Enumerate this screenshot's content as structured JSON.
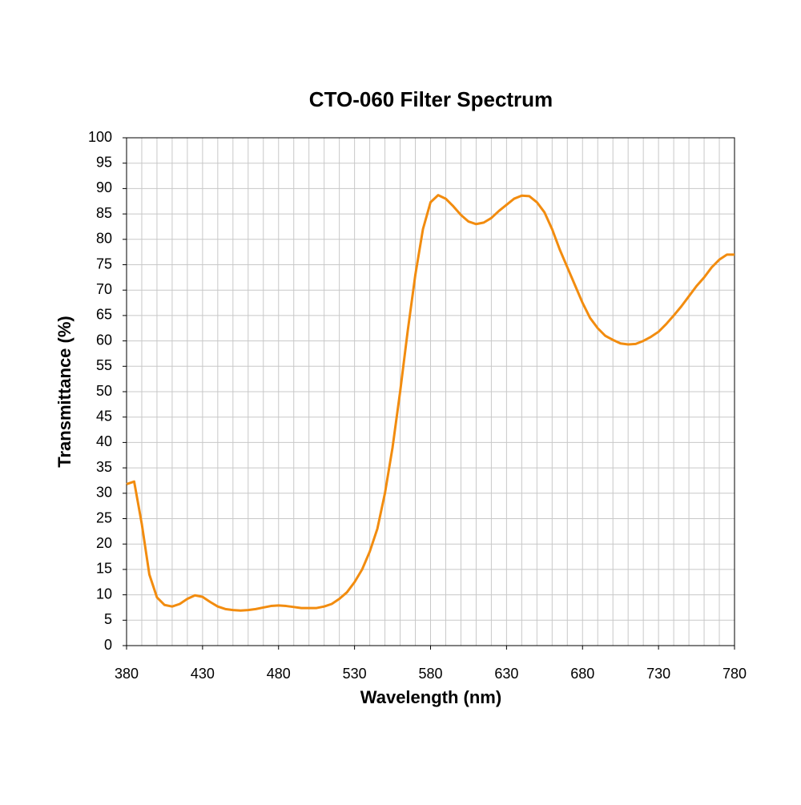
{
  "chart_data": {
    "type": "line",
    "title": "CTO-060 Filter Spectrum",
    "x_label": "Wavelength (nm)",
    "y_label": "Transmittance (%)",
    "x": [
      380,
      385,
      390,
      395,
      400,
      405,
      410,
      415,
      420,
      425,
      430,
      435,
      440,
      445,
      450,
      455,
      460,
      465,
      470,
      475,
      480,
      485,
      490,
      495,
      500,
      505,
      510,
      515,
      520,
      525,
      530,
      535,
      540,
      545,
      550,
      555,
      560,
      565,
      570,
      575,
      580,
      585,
      590,
      595,
      600,
      605,
      610,
      615,
      620,
      625,
      630,
      635,
      640,
      645,
      650,
      655,
      660,
      665,
      670,
      675,
      680,
      685,
      690,
      695,
      700,
      705,
      710,
      715,
      720,
      725,
      730,
      735,
      740,
      745,
      750,
      755,
      760,
      765,
      770,
      775,
      780
    ],
    "series": [
      {
        "name": "CTO-060",
        "color": "#f28c0f",
        "values": [
          31.8,
          32.3,
          24,
          14,
          9.5,
          8,
          7.7,
          8.2,
          9.2,
          9.9,
          9.6,
          8.6,
          7.7,
          7.2,
          7,
          6.9,
          7,
          7.2,
          7.5,
          7.8,
          7.9,
          7.8,
          7.6,
          7.4,
          7.4,
          7.4,
          7.7,
          8.2,
          9.2,
          10.5,
          12.5,
          15,
          18.5,
          23,
          30,
          39,
          50,
          62,
          73,
          82,
          87.3,
          88.7,
          88,
          86.5,
          84.8,
          83.5,
          83,
          83.3,
          84.2,
          85.6,
          86.8,
          88,
          88.6,
          88.5,
          87.3,
          85.3,
          82,
          78,
          74.5,
          71,
          67.5,
          64.5,
          62.5,
          61,
          60.2,
          59.5,
          59.3,
          59.4,
          60,
          60.8,
          61.8,
          63.3,
          65,
          66.8,
          68.8,
          70.8,
          72.5,
          74.5,
          76,
          77,
          77
        ]
      }
    ],
    "xlim": [
      380,
      780
    ],
    "xticks": [
      380,
      430,
      480,
      530,
      580,
      630,
      680,
      730,
      780
    ],
    "ylim": [
      0,
      100
    ],
    "yticks": [
      0,
      5,
      10,
      15,
      20,
      25,
      30,
      35,
      40,
      45,
      50,
      55,
      60,
      65,
      70,
      75,
      80,
      85,
      90,
      95,
      100
    ],
    "x_grid_step": 10,
    "grid": true
  }
}
